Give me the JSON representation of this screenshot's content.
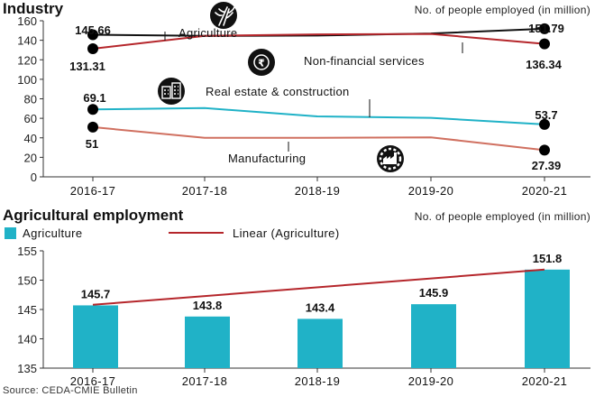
{
  "chart_data": [
    {
      "type": "line",
      "title": "Industry",
      "subtitle": "No. of people employed (in million)",
      "categories": [
        "2016-17",
        "2017-18",
        "2018-19",
        "2019-20",
        "2020-21"
      ],
      "ylim": [
        0,
        160
      ],
      "yticks": [
        0,
        20,
        40,
        60,
        80,
        100,
        120,
        140,
        160
      ],
      "grid": false,
      "series": [
        {
          "name": "Agriculture",
          "color": "#111111",
          "icon": "wheat-icon",
          "values": [
            145.66,
            144.5,
            144.8,
            147.0,
            151.79
          ],
          "labels": [
            {
              "index": 0,
              "text": "145.66"
            },
            {
              "index": 4,
              "text": "151.79"
            }
          ]
        },
        {
          "name": "Non-financial services",
          "color": "#b5262b",
          "icon": "coin-icon",
          "values": [
            131.31,
            144.5,
            146.0,
            146.5,
            136.34
          ],
          "labels": [
            {
              "index": 0,
              "text": "131.31"
            },
            {
              "index": 4,
              "text": "136.34"
            }
          ]
        },
        {
          "name": "Real estate & construction",
          "color": "#20b2c7",
          "icon": "buildings-icon",
          "values": [
            69.1,
            70.5,
            62.0,
            60.5,
            53.7
          ],
          "labels": [
            {
              "index": 0,
              "text": "69.1"
            },
            {
              "index": 4,
              "text": "53.7"
            }
          ]
        },
        {
          "name": "Manufacturing",
          "color": "#d07060",
          "icon": "factory-gear-icon",
          "values": [
            51,
            40.0,
            40.0,
            40.5,
            27.39
          ],
          "labels": [
            {
              "index": 0,
              "text": "51"
            },
            {
              "index": 4,
              "text": "27.39"
            }
          ]
        }
      ]
    },
    {
      "type": "bar",
      "title": "Agricultural employment",
      "subtitle": "No. of people employed (in million)",
      "categories": [
        "2016-17",
        "2017-18",
        "2018-19",
        "2019-20",
        "2020-21"
      ],
      "ylim": [
        135,
        155
      ],
      "yticks": [
        135,
        140,
        145,
        150,
        155
      ],
      "grid": false,
      "legend_position": "top-left",
      "series": [
        {
          "name": "Agriculture",
          "color": "#20b2c7",
          "values": [
            145.7,
            143.8,
            143.4,
            145.9,
            151.8
          ],
          "labels": [
            "145.7",
            "143.8",
            "143.4",
            "145.9",
            "151.8"
          ]
        },
        {
          "name": "Linear (Agriculture)",
          "type": "trendline",
          "color": "#b5262b",
          "values": [
            145.8,
            147.3,
            148.8,
            150.3,
            151.8
          ]
        }
      ]
    }
  ],
  "source": "Source: CEDA-CMIE Bulletin"
}
